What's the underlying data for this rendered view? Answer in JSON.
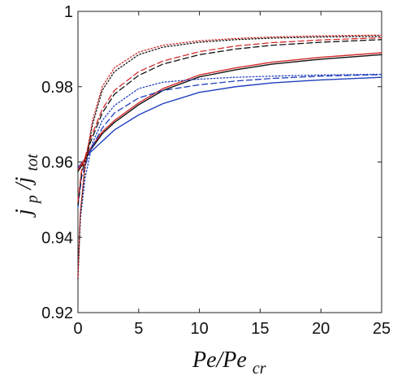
{
  "chart_data": {
    "type": "line",
    "title": "",
    "xlim": [
      0,
      25
    ],
    "ylim": [
      0.92,
      1.0
    ],
    "grid": false,
    "legend": "none",
    "x_ticks": [
      "0",
      "5",
      "10",
      "15",
      "20",
      "25"
    ],
    "y_ticks": [
      "0.92",
      "0.94",
      "0.96",
      "0.98",
      "1"
    ],
    "xlabel": {
      "main": "Pe/Pe",
      "sub": "cr"
    },
    "ylabel": {
      "first": "j",
      "first_sub": "p",
      "separator": "/j",
      "second_sub": "tot"
    },
    "series": [
      {
        "color": "#1f3fbf",
        "style": "solid",
        "x": [
          0.0,
          0.5,
          1.0,
          2.0,
          3.0,
          5.0,
          7.0,
          10.0,
          13.0,
          16.0,
          20.0,
          25.0
        ],
        "y": [
          0.9585,
          0.9605,
          0.9625,
          0.9655,
          0.9685,
          0.9725,
          0.9755,
          0.9785,
          0.98,
          0.981,
          0.9818,
          0.9825
        ]
      },
      {
        "color": "#111111",
        "style": "solid",
        "x": [
          0.0,
          0.5,
          1.0,
          2.0,
          3.0,
          5.0,
          7.0,
          10.0,
          13.0,
          16.0,
          20.0,
          25.0
        ],
        "y": [
          0.9575,
          0.96,
          0.963,
          0.9675,
          0.9705,
          0.9752,
          0.979,
          0.9826,
          0.9845,
          0.986,
          0.9873,
          0.9885
        ]
      },
      {
        "color": "#d42a2a",
        "style": "solid",
        "x": [
          0.0,
          0.5,
          1.0,
          2.0,
          3.0,
          5.0,
          7.0,
          10.0,
          13.0,
          16.0,
          20.0,
          25.0
        ],
        "y": [
          0.958,
          0.9605,
          0.9635,
          0.968,
          0.971,
          0.9757,
          0.9795,
          0.9831,
          0.985,
          0.9865,
          0.9878,
          0.989
        ]
      },
      {
        "color": "#1f3fbf",
        "style": "dashed",
        "x": [
          0.0,
          0.3,
          1.0,
          2.0,
          3.0,
          5.0,
          7.0,
          10.0,
          13.0,
          16.0,
          20.0,
          25.0
        ],
        "y": [
          0.948,
          0.956,
          0.963,
          0.969,
          0.973,
          0.977,
          0.979,
          0.9805,
          0.9815,
          0.9822,
          0.9828,
          0.9832
        ]
      },
      {
        "color": "#111111",
        "style": "dashed",
        "x": [
          0.0,
          0.3,
          1.0,
          2.0,
          3.0,
          5.0,
          7.0,
          10.0,
          13.0,
          16.0,
          20.0,
          25.0
        ],
        "y": [
          0.9485,
          0.957,
          0.965,
          0.973,
          0.978,
          0.983,
          0.986,
          0.9885,
          0.99,
          0.991,
          0.9918,
          0.9925
        ]
      },
      {
        "color": "#d42a2a",
        "style": "dashed",
        "x": [
          0.0,
          0.3,
          1.0,
          2.0,
          3.0,
          5.0,
          7.0,
          10.0,
          13.0,
          16.0,
          20.0,
          25.0
        ],
        "y": [
          0.9495,
          0.958,
          0.966,
          0.974,
          0.979,
          0.984,
          0.9868,
          0.9893,
          0.9908,
          0.9917,
          0.9924,
          0.993
        ]
      },
      {
        "color": "#1f3fbf",
        "style": "dotted",
        "x": [
          0.0,
          0.2,
          0.6,
          1.2,
          2.0,
          3.0,
          5.0,
          7.0,
          10.0,
          13.0,
          16.0,
          20.0,
          25.0
        ],
        "y": [
          0.93,
          0.945,
          0.956,
          0.965,
          0.971,
          0.975,
          0.9795,
          0.9812,
          0.982,
          0.9825,
          0.9828,
          0.9831,
          0.9833
        ]
      },
      {
        "color": "#111111",
        "style": "dotted",
        "x": [
          0.0,
          0.2,
          0.6,
          1.2,
          2.0,
          3.0,
          5.0,
          7.0,
          10.0,
          13.0,
          16.0,
          20.0,
          25.0
        ],
        "y": [
          0.929,
          0.946,
          0.959,
          0.97,
          0.979,
          0.984,
          0.9885,
          0.9905,
          0.9918,
          0.9925,
          0.9929,
          0.9932,
          0.9934
        ]
      },
      {
        "color": "#d42a2a",
        "style": "dotted",
        "x": [
          0.0,
          0.2,
          0.6,
          1.2,
          2.0,
          3.0,
          5.0,
          7.0,
          10.0,
          13.0,
          16.0,
          20.0,
          25.0
        ],
        "y": [
          0.9295,
          0.947,
          0.96,
          0.971,
          0.98,
          0.985,
          0.9892,
          0.991,
          0.9922,
          0.9928,
          0.9932,
          0.9935,
          0.9937
        ]
      }
    ]
  }
}
